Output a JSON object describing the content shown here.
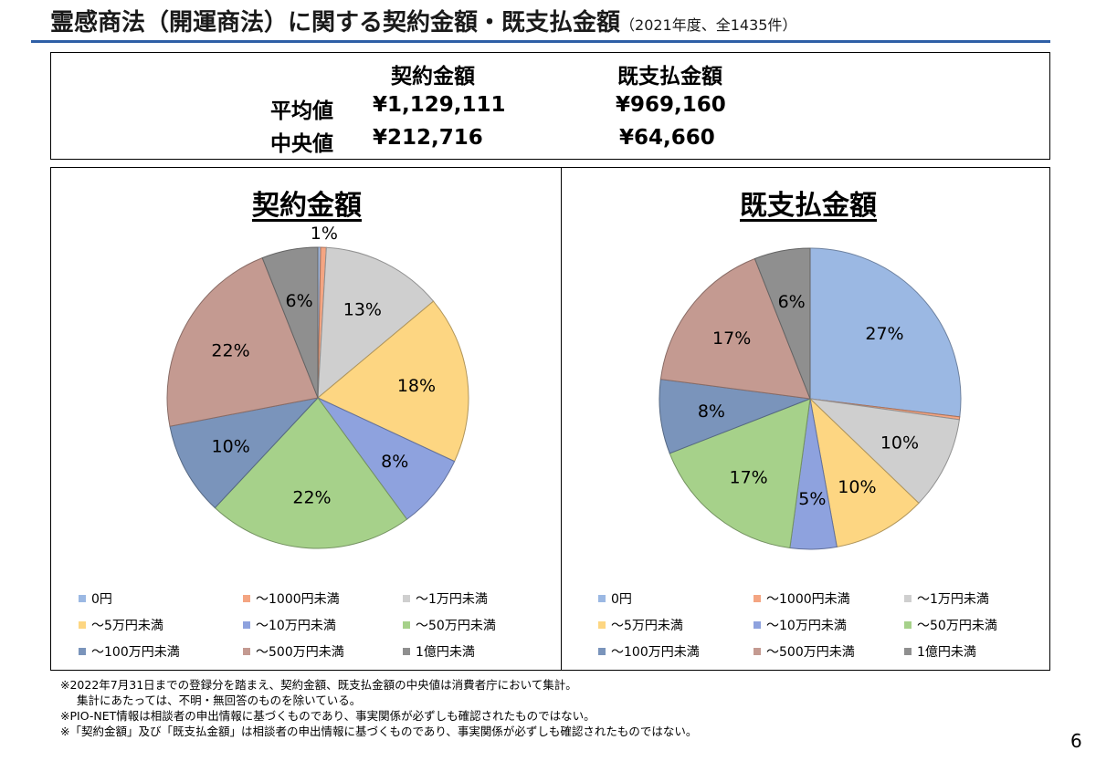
{
  "header": {
    "title": "霊感商法（開運商法）に関する契約金額・既支払金額",
    "subtitle": "（2021年度、全1435件）"
  },
  "summary": {
    "col_contract": "契約金額",
    "col_paid": "既支払金額",
    "rows": [
      {
        "label": "平均値",
        "contract": "¥1,129,111",
        "paid": "¥969,160"
      },
      {
        "label": "中央値",
        "contract": "¥212,716",
        "paid": "¥64,660"
      }
    ]
  },
  "legend_categories": [
    "0円",
    "～1000円未満",
    "～1万円未満",
    "～5万円未満",
    "～10万円未満",
    "～50万円未満",
    "～100万円未満",
    "～500万円未満",
    "1億円未満"
  ],
  "colors": [
    "#9bb8e3",
    "#f4a582",
    "#cfcfcf",
    "#fdd682",
    "#8ea2de",
    "#a6d18a",
    "#7a94bb",
    "#c49a91",
    "#8f8f8f"
  ],
  "chart_data": [
    {
      "type": "pie",
      "title": "契約金額",
      "categories": [
        "0円",
        "～1000円未満",
        "～1万円未満",
        "～5万円未満",
        "～10万円未満",
        "～50万円未満",
        "～100万円未満",
        "～500万円未満",
        "1億円未満"
      ],
      "values": [
        0.3,
        0.6,
        13,
        18,
        8,
        22,
        10,
        22,
        6
      ],
      "labels": [
        "",
        "1%",
        "13%",
        "18%",
        "8%",
        "22%",
        "10%",
        "22%",
        "6%"
      ],
      "legend": "bottom"
    },
    {
      "type": "pie",
      "title": "既支払金額",
      "categories": [
        "0円",
        "～1000円未満",
        "～1万円未満",
        "～5万円未満",
        "～10万円未満",
        "～50万円未満",
        "～100万円未満",
        "～500万円未満",
        "1億円未満"
      ],
      "values": [
        27,
        0.3,
        10,
        10,
        5,
        17,
        8,
        17,
        6
      ],
      "labels": [
        "27%",
        "",
        "10%",
        "10%",
        "5%",
        "17%",
        "8%",
        "17%",
        "6%"
      ],
      "legend": "bottom"
    }
  ],
  "notes": [
    "※2022年7月31日までの登録分を踏まえ、契約金額、既支払金額の中央値は消費者庁において集計。",
    "集計にあたっては、不明・無回答のものを除いている。",
    "※PIO-NET情報は相談者の申出情報に基づくものであり、事実関係が必ずしも確認されたものではない。",
    "※「契約金額」及び「既支払金額」は相談者の申出情報に基づくものであり、事実関係が必ずしも確認されたものではない。"
  ],
  "page_number": "6"
}
